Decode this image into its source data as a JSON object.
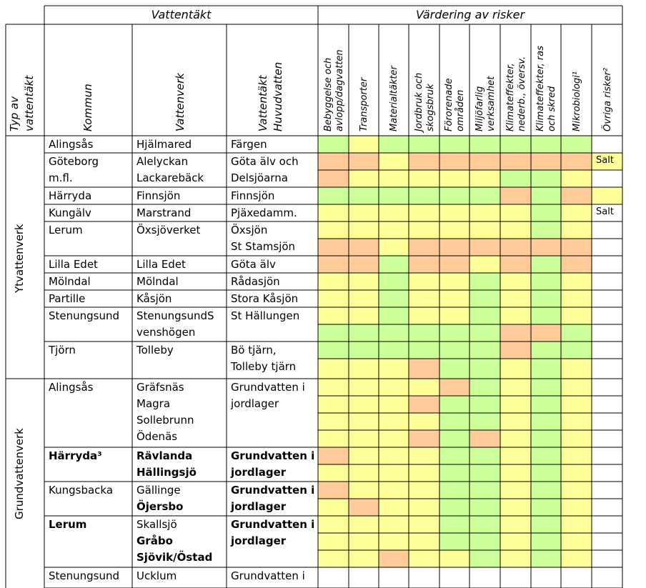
{
  "colors": {
    "green": "#ccff99",
    "yellow": "#ffff99",
    "orange": "#ffcc99",
    "white": "#ffffff",
    "line": "#000000"
  },
  "header": {
    "group_vattentakt": "Vattentäkt",
    "group_risker": "Värdering av risker",
    "col_typ": "Typ av\nvattentäkt",
    "col_kommun": "Kommun",
    "col_vattenverk": "Vattenverk",
    "col_vattentakt": "Vattentäkt\nHuvudvatten",
    "risks": [
      "Bebyggelse och\navlopp/dagvatten",
      "Transporter",
      "Materialtäkter",
      "Jordbruk och\nskogsbruk",
      "Förorenade\nområden",
      "Miljöfarlig\nverksamhet",
      "Klimateffekter,\nnederb., översv.",
      "Klimateffekter, ras\noch skred",
      "Mikrobiologi¹",
      "Övriga risker²"
    ]
  },
  "groups": {
    "yt": "Ytvattenverk",
    "grund": "Grundvattenverk"
  },
  "rows": [
    {
      "kommun": "Alingsås",
      "verk": "Hjälmared",
      "takt": "Färgen"
    },
    {
      "kommun": "Göteborg\nm.fl.",
      "verk": "Alelyckan\nLackarebäck",
      "takt": "Göta älv och\nDelsjöarna",
      "ovriga": "Salt"
    },
    {
      "kommun": "Härryda",
      "verk": "Finnsjön",
      "takt": "Finnsjön"
    },
    {
      "kommun": "Kungälv",
      "verk": "Marstrand",
      "takt": "Pjäxedamm.",
      "ovriga": "Salt"
    },
    {
      "kommun": "Lerum",
      "verk": "Öxsjöverket",
      "takt": "Öxsjön\nSt Stamsjön"
    },
    {
      "kommun": "Lilla Edet",
      "verk": "Lilla Edet",
      "takt": "Göta älv"
    },
    {
      "kommun": "Mölndal",
      "verk": "Mölndal",
      "takt": "Rådasjön"
    },
    {
      "kommun": "Partille",
      "verk": "Kåsjön",
      "takt": "Stora Kåsjön"
    },
    {
      "kommun": "Stenungsund",
      "verk": "StenungsundS\nvenshögen",
      "takt": "St Hällungen"
    },
    {
      "kommun": "Tjörn",
      "verk": "Tolleby",
      "takt": "Bö tjärn,\nTolleby tjärn"
    },
    {
      "kommun": "Alingsås",
      "verk": "Gräfsnäs\nMagra\nSollebrunn\nÖdenäs",
      "takt": "Grundvatten i\njordlager"
    },
    {
      "kommun": "Härryda³",
      "verk": "Rävlanda\nHällingsjö",
      "takt": "Grundvatten i\njordlager"
    },
    {
      "kommun": "Kungsbacka",
      "verk": "Gällinge\nÖjersbo",
      "takt": "Grundvatten i\njordlager"
    },
    {
      "kommun": "Lerum",
      "verk": "Skallsjö\nGråbo\nSjövik/Östad",
      "takt": "Grundvatten i\njordlager"
    },
    {
      "kommun": "Stenungsund",
      "verk": "Ucklum",
      "takt": "Grundvatten i"
    }
  ],
  "risk_grid": [
    "GYGGGGGGGW",
    "OOYOOOOOOY",
    "OYYYYYGGYW",
    "GGGGGGOGOY",
    "YYYYYYYGYW",
    "YYYYYYYGYW",
    "OOYOOOOOOW",
    "OOGOOYOGOW",
    "YYGYYGYGYW",
    "YYGYYGYGYW",
    "YYGYYGYGYW",
    "GGGGGGOOGW",
    "GGGGGGOGGW",
    "YYYOGGYGYW",
    "YYYYOGYGYW",
    "YYYOGGYGYW",
    "YYYYGGYGYW",
    "YYYOGOYGYW",
    "OYYYGGYGYW",
    "YYYYGGYGYW",
    "OYYYGGYGYW",
    "YOYYGGYGYW",
    "YYYYGGYGYW",
    "YYYYGGYGYW",
    "YYOYYGYGYW"
  ]
}
